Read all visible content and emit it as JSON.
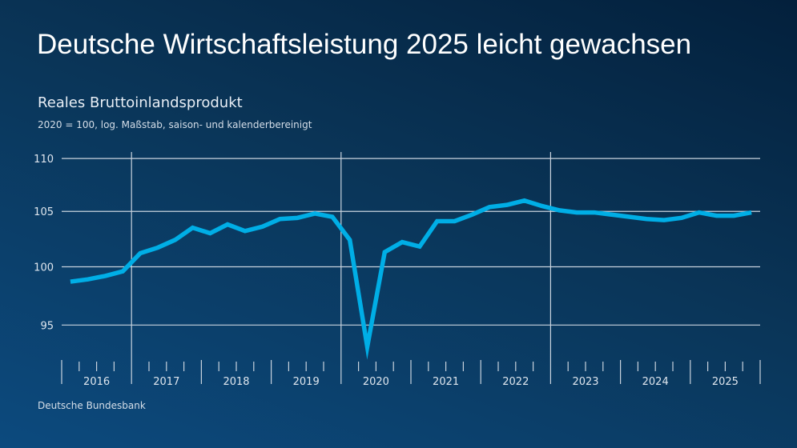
{
  "title": "Deutsche Wirtschaftsleistung 2025 leicht gewachsen",
  "source": "Deutsche Bundesbank",
  "chart_data": {
    "type": "line",
    "title": "Reales Bruttoinlandsprodukt",
    "subtitle": "2020 = 100, log. Maßstab, saison- und kalenderbereinigt",
    "scale": "log",
    "ylim": [
      92,
      110
    ],
    "yticks": [
      95,
      100,
      105,
      110
    ],
    "years": [
      "2016",
      "2017",
      "2018",
      "2019",
      "2020",
      "2021",
      "2022",
      "2023",
      "2024",
      "2025"
    ],
    "x_frequency": "quarterly",
    "grid": true,
    "line_color": "#00aee6",
    "values": [
      98.7,
      98.9,
      99.2,
      99.6,
      101.2,
      101.7,
      102.4,
      103.5,
      103.0,
      103.8,
      103.2,
      103.6,
      104.3,
      104.4,
      104.8,
      104.5,
      102.4,
      93.2,
      101.3,
      102.2,
      101.8,
      104.1,
      104.1,
      104.7,
      105.4,
      105.6,
      106.0,
      105.5,
      105.1,
      104.9,
      104.9,
      104.7,
      104.5,
      104.3,
      104.2,
      104.4,
      104.9,
      104.6,
      104.6,
      104.9
    ]
  }
}
